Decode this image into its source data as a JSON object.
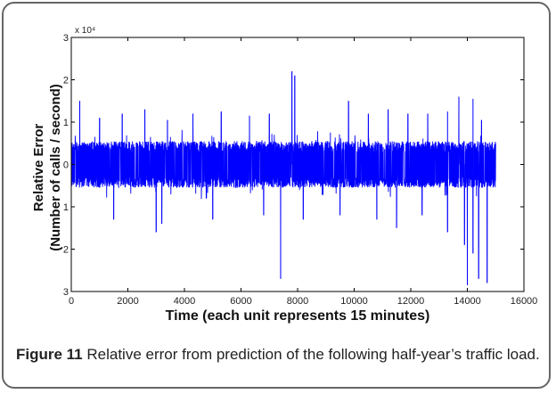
{
  "chart_data": {
    "type": "line",
    "title": "",
    "multiplier_label": "x 10⁴",
    "xlabel": "Time (each unit represents 15 minutes)",
    "ylabel_line1": "Relative Error",
    "ylabel_line2": "(Number of calls / second)",
    "xlim": [
      0,
      16000
    ],
    "ylim": [
      -3,
      3
    ],
    "xticks": [
      0,
      2000,
      4000,
      6000,
      8000,
      10000,
      12000,
      14000,
      16000
    ],
    "xtick_labels": [
      "0",
      "2000",
      "4000",
      "6000",
      "8000",
      "10000",
      "12000",
      "14000",
      "16000"
    ],
    "ytick_labels": [
      {
        "value": 3,
        "label": "3"
      },
      {
        "value": 2,
        "label": "2"
      },
      {
        "value": 1,
        "label": "1"
      },
      {
        "value": 0,
        "label": "0"
      },
      {
        "value": -1,
        "label": "1"
      },
      {
        "value": -2,
        "label": "2"
      },
      {
        "value": -3,
        "label": "3"
      }
    ],
    "series": [
      {
        "color": "#0000ff",
        "n_points": 15000,
        "band_range": [
          -0.55,
          0.55
        ],
        "spikes": [
          {
            "x": 300,
            "y": 1.5
          },
          {
            "x": 1000,
            "y": 1.1
          },
          {
            "x": 1800,
            "y": 1.2
          },
          {
            "x": 2600,
            "y": 1.3
          },
          {
            "x": 3400,
            "y": 1.05
          },
          {
            "x": 4300,
            "y": 1.2
          },
          {
            "x": 5300,
            "y": 1.25
          },
          {
            "x": 6300,
            "y": 1.15
          },
          {
            "x": 7000,
            "y": 1.2
          },
          {
            "x": 7800,
            "y": 2.2
          },
          {
            "x": 7900,
            "y": 2.1
          },
          {
            "x": 9800,
            "y": 1.5
          },
          {
            "x": 10500,
            "y": 1.2
          },
          {
            "x": 11200,
            "y": 1.3
          },
          {
            "x": 11900,
            "y": 1.2
          },
          {
            "x": 12600,
            "y": 1.2
          },
          {
            "x": 13300,
            "y": 1.25
          },
          {
            "x": 13700,
            "y": 1.6
          },
          {
            "x": 14200,
            "y": 1.55
          },
          {
            "x": 14500,
            "y": 1.05
          },
          {
            "x": 1500,
            "y": -1.3
          },
          {
            "x": 3000,
            "y": -1.6
          },
          {
            "x": 3200,
            "y": -1.4
          },
          {
            "x": 5000,
            "y": -1.3
          },
          {
            "x": 6800,
            "y": -1.2
          },
          {
            "x": 7400,
            "y": -2.7
          },
          {
            "x": 8200,
            "y": -1.3
          },
          {
            "x": 9500,
            "y": -1.2
          },
          {
            "x": 10800,
            "y": -1.3
          },
          {
            "x": 11500,
            "y": -1.5
          },
          {
            "x": 12400,
            "y": -1.2
          },
          {
            "x": 13300,
            "y": -1.6
          },
          {
            "x": 13900,
            "y": -1.9
          },
          {
            "x": 14000,
            "y": -2.85
          },
          {
            "x": 14200,
            "y": -2.1
          },
          {
            "x": 14400,
            "y": -2.7
          },
          {
            "x": 14700,
            "y": -2.8
          }
        ]
      }
    ]
  },
  "caption": {
    "label": "Figure 11",
    "text": " Relative error from prediction of the following half-year’s traffic load."
  }
}
